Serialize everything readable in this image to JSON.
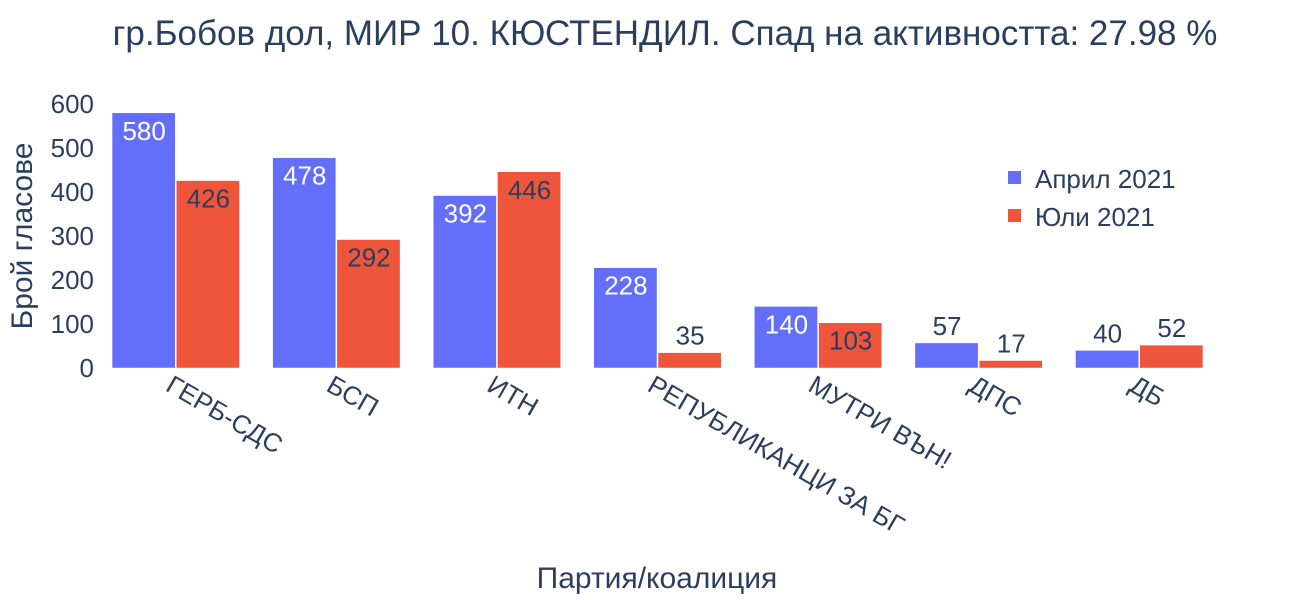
{
  "chart_data": {
    "type": "bar",
    "title": "гр.Бобов дол, МИР 10. КЮСТЕНДИЛ. Спад на активността: 27.98 %",
    "xlabel": "Партия/коалиция",
    "ylabel": "Брой гласове",
    "categories": [
      "ГЕРБ-СДС",
      "БСП",
      "ИТН",
      "РЕПУБЛИКАНЦИ ЗА БГ",
      "МУТРИ ВЪН!",
      "ДПС",
      "ДБ"
    ],
    "series": [
      {
        "name": "Април 2021",
        "color": "#636efa",
        "values": [
          580,
          478,
          392,
          228,
          140,
          57,
          40
        ]
      },
      {
        "name": "Юли 2021",
        "color": "#ef553b",
        "values": [
          426,
          292,
          446,
          35,
          103,
          17,
          52
        ]
      }
    ],
    "ylim": [
      0,
      600
    ],
    "yticks": [
      0,
      100,
      200,
      300,
      400,
      500,
      600
    ],
    "grid": false,
    "legend_position": "top-right"
  }
}
